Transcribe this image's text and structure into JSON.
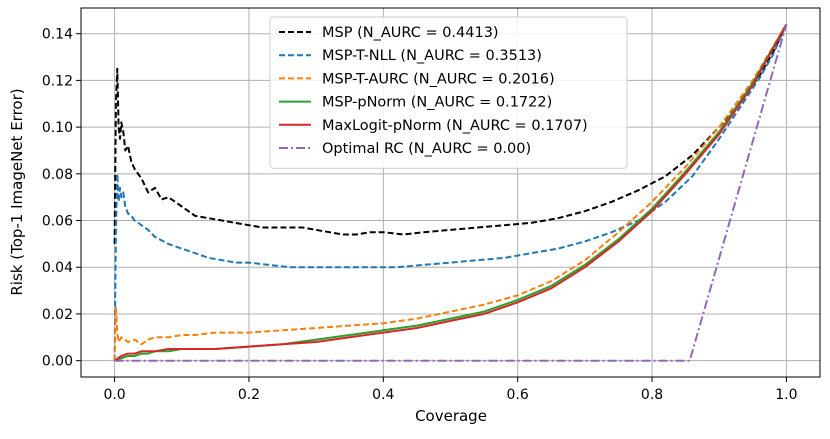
{
  "chart_data": {
    "type": "line",
    "title": "",
    "xlabel": "Coverage",
    "ylabel": "Risk (Top-1 ImageNet Error)",
    "xlim": [
      -0.05,
      1.05
    ],
    "ylim": [
      -0.007,
      0.151
    ],
    "xticks": [
      0.0,
      0.2,
      0.4,
      0.6,
      0.8,
      1.0
    ],
    "xtick_labels": [
      "0.0",
      "0.2",
      "0.4",
      "0.6",
      "0.8",
      "1.0"
    ],
    "yticks": [
      0.0,
      0.02,
      0.04,
      0.06,
      0.08,
      0.1,
      0.12,
      0.14
    ],
    "ytick_labels": [
      "0.00",
      "0.02",
      "0.04",
      "0.06",
      "0.08",
      "0.10",
      "0.12",
      "0.14"
    ],
    "grid": true,
    "legend_position": "top-center",
    "series": [
      {
        "name": "MSP (N_AURC = 0.4413)",
        "color": "#000000",
        "dash": "dashed",
        "x": [
          0.0,
          0.002,
          0.004,
          0.006,
          0.008,
          0.01,
          0.013,
          0.016,
          0.02,
          0.025,
          0.03,
          0.04,
          0.05,
          0.06,
          0.07,
          0.08,
          0.09,
          0.1,
          0.12,
          0.14,
          0.16,
          0.18,
          0.2,
          0.22,
          0.25,
          0.28,
          0.3,
          0.32,
          0.34,
          0.36,
          0.38,
          0.4,
          0.43,
          0.46,
          0.5,
          0.54,
          0.58,
          0.62,
          0.66,
          0.7,
          0.74,
          0.78,
          0.82,
          0.86,
          0.9,
          0.93,
          0.96,
          0.98,
          1.0
        ],
        "y": [
          0.05,
          0.11,
          0.125,
          0.1,
          0.095,
          0.102,
          0.098,
          0.09,
          0.092,
          0.085,
          0.082,
          0.078,
          0.072,
          0.074,
          0.069,
          0.07,
          0.068,
          0.066,
          0.062,
          0.061,
          0.06,
          0.059,
          0.058,
          0.057,
          0.057,
          0.057,
          0.056,
          0.055,
          0.054,
          0.054,
          0.055,
          0.055,
          0.054,
          0.055,
          0.056,
          0.057,
          0.058,
          0.059,
          0.061,
          0.064,
          0.068,
          0.073,
          0.079,
          0.088,
          0.1,
          0.11,
          0.122,
          0.132,
          0.144
        ]
      },
      {
        "name": "MSP-T-NLL (N_AURC = 0.3513)",
        "color": "#1f77b4",
        "dash": "dashed",
        "x": [
          0.0,
          0.002,
          0.004,
          0.006,
          0.008,
          0.01,
          0.013,
          0.016,
          0.02,
          0.025,
          0.03,
          0.04,
          0.05,
          0.06,
          0.08,
          0.1,
          0.12,
          0.14,
          0.16,
          0.18,
          0.2,
          0.23,
          0.26,
          0.3,
          0.34,
          0.38,
          0.42,
          0.46,
          0.5,
          0.54,
          0.58,
          0.62,
          0.66,
          0.7,
          0.74,
          0.78,
          0.82,
          0.86,
          0.9,
          0.93,
          0.96,
          0.98,
          1.0
        ],
        "y": [
          0.0,
          0.055,
          0.08,
          0.068,
          0.074,
          0.07,
          0.072,
          0.066,
          0.063,
          0.062,
          0.06,
          0.058,
          0.056,
          0.053,
          0.05,
          0.048,
          0.046,
          0.044,
          0.043,
          0.042,
          0.042,
          0.041,
          0.04,
          0.04,
          0.04,
          0.04,
          0.04,
          0.041,
          0.042,
          0.043,
          0.044,
          0.046,
          0.048,
          0.051,
          0.055,
          0.06,
          0.068,
          0.079,
          0.095,
          0.108,
          0.121,
          0.131,
          0.144
        ]
      },
      {
        "name": "MSP-T-AURC (N_AURC = 0.2016)",
        "color": "#ff7f0e",
        "dash": "dashed",
        "x": [
          0.0,
          0.002,
          0.004,
          0.006,
          0.01,
          0.015,
          0.02,
          0.03,
          0.04,
          0.05,
          0.06,
          0.08,
          0.1,
          0.12,
          0.15,
          0.2,
          0.25,
          0.3,
          0.35,
          0.4,
          0.45,
          0.5,
          0.55,
          0.6,
          0.65,
          0.7,
          0.75,
          0.8,
          0.85,
          0.9,
          0.95,
          1.0
        ],
        "y": [
          0.0,
          0.023,
          0.012,
          0.008,
          0.01,
          0.009,
          0.008,
          0.009,
          0.007,
          0.009,
          0.01,
          0.01,
          0.011,
          0.011,
          0.012,
          0.012,
          0.013,
          0.014,
          0.015,
          0.016,
          0.018,
          0.021,
          0.024,
          0.028,
          0.034,
          0.043,
          0.055,
          0.068,
          0.083,
          0.1,
          0.12,
          0.144
        ]
      },
      {
        "name": "MSP-pNorm (N_AURC = 0.1722)",
        "color": "#2ca02c",
        "dash": "solid",
        "x": [
          0.0,
          0.01,
          0.02,
          0.03,
          0.04,
          0.05,
          0.06,
          0.08,
          0.1,
          0.15,
          0.2,
          0.25,
          0.3,
          0.35,
          0.4,
          0.45,
          0.5,
          0.55,
          0.6,
          0.65,
          0.7,
          0.75,
          0.8,
          0.85,
          0.9,
          0.95,
          1.0
        ],
        "y": [
          0.0,
          0.001,
          0.002,
          0.002,
          0.003,
          0.003,
          0.004,
          0.004,
          0.005,
          0.005,
          0.006,
          0.007,
          0.009,
          0.011,
          0.013,
          0.015,
          0.018,
          0.021,
          0.026,
          0.032,
          0.041,
          0.052,
          0.065,
          0.081,
          0.098,
          0.119,
          0.144
        ]
      },
      {
        "name": "MaxLogit-pNorm (N_AURC = 0.1707)",
        "color": "#d62728",
        "dash": "solid",
        "x": [
          0.0,
          0.01,
          0.02,
          0.03,
          0.04,
          0.05,
          0.06,
          0.08,
          0.1,
          0.15,
          0.2,
          0.25,
          0.3,
          0.35,
          0.4,
          0.45,
          0.5,
          0.55,
          0.6,
          0.65,
          0.7,
          0.75,
          0.8,
          0.85,
          0.9,
          0.95,
          1.0
        ],
        "y": [
          0.0,
          0.002,
          0.003,
          0.003,
          0.004,
          0.004,
          0.004,
          0.005,
          0.005,
          0.005,
          0.006,
          0.007,
          0.008,
          0.01,
          0.012,
          0.014,
          0.017,
          0.02,
          0.025,
          0.031,
          0.04,
          0.051,
          0.064,
          0.08,
          0.097,
          0.118,
          0.144
        ]
      },
      {
        "name": "Optimal RC (N_AURC = 0.00)",
        "color": "#9467bd",
        "dash": "dashdot",
        "x": [
          0.0,
          0.856,
          1.0
        ],
        "y": [
          0.0,
          0.0,
          0.144
        ]
      }
    ]
  }
}
